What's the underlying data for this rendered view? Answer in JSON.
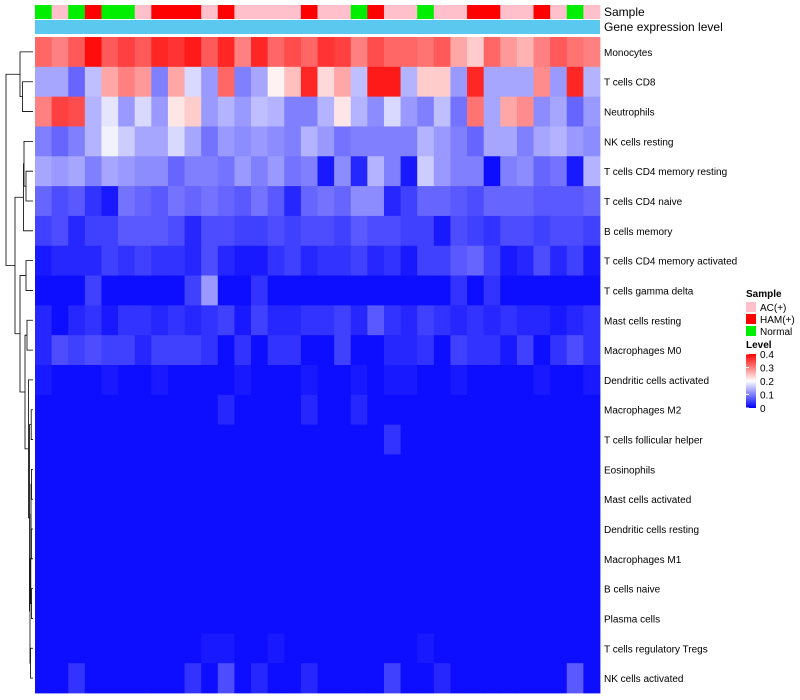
{
  "chart_data": {
    "type": "heatmap",
    "title": "",
    "annotation_tracks": [
      "Sample",
      "Gene expression level"
    ],
    "rows": [
      "Monocytes",
      "T cells CD8",
      "Neutrophils",
      "NK cells resting",
      "T cells CD4 memory resting",
      "T cells CD4 naive",
      "B cells memory",
      "T cells CD4 memory activated",
      "T cells gamma delta",
      "Mast cells resting",
      "Macrophages M0",
      "Dendritic cells activated",
      "Macrophages M2",
      "T cells follicular helper",
      "Eosinophils",
      "Mast cells activated",
      "Dendritic cells resting",
      "Macrophages M1",
      "B cells naive",
      "Plasma cells",
      "T cells regulatory  Tregs",
      "NK cells activated"
    ],
    "sample_groups": [
      "Normal",
      "AC(+)",
      "Normal",
      "HAM(+)",
      "Normal",
      "Normal",
      "AC(+)",
      "HAM(+)",
      "HAM(+)",
      "HAM(+)",
      "AC(+)",
      "HAM(+)",
      "AC(+)",
      "AC(+)",
      "AC(+)",
      "AC(+)",
      "HAM(+)",
      "AC(+)",
      "AC(+)",
      "Normal",
      "HAM(+)",
      "AC(+)",
      "AC(+)",
      "Normal",
      "AC(+)",
      "AC(+)",
      "HAM(+)",
      "HAM(+)",
      "AC(+)",
      "AC(+)",
      "HAM(+)",
      "AC(+)",
      "Normal",
      "AC(+)"
    ],
    "values": [
      [
        0.32,
        0.3,
        0.33,
        0.39,
        0.33,
        0.35,
        0.33,
        0.37,
        0.36,
        0.38,
        0.33,
        0.37,
        0.3,
        0.37,
        0.32,
        0.34,
        0.32,
        0.36,
        0.35,
        0.3,
        0.34,
        0.32,
        0.32,
        0.31,
        0.33,
        0.27,
        0.24,
        0.32,
        0.28,
        0.26,
        0.3,
        0.33,
        0.31,
        0.3
      ],
      [
        0.13,
        0.13,
        0.08,
        0.15,
        0.27,
        0.3,
        0.28,
        0.1,
        0.27,
        0.17,
        0.12,
        0.32,
        0.1,
        0.13,
        0.21,
        0.25,
        0.37,
        0.23,
        0.27,
        0.15,
        0.38,
        0.38,
        0.14,
        0.24,
        0.24,
        0.12,
        0.37,
        0.13,
        0.13,
        0.13,
        0.29,
        0.12,
        0.37,
        0.14
      ],
      [
        0.3,
        0.35,
        0.34,
        0.14,
        0.18,
        0.12,
        0.17,
        0.12,
        0.22,
        0.24,
        0.12,
        0.14,
        0.12,
        0.15,
        0.14,
        0.1,
        0.1,
        0.14,
        0.22,
        0.14,
        0.11,
        0.17,
        0.12,
        0.1,
        0.15,
        0.09,
        0.31,
        0.13,
        0.27,
        0.29,
        0.11,
        0.13,
        0.08,
        0.12
      ],
      [
        0.1,
        0.08,
        0.1,
        0.14,
        0.19,
        0.16,
        0.13,
        0.13,
        0.17,
        0.13,
        0.09,
        0.12,
        0.11,
        0.12,
        0.11,
        0.1,
        0.14,
        0.12,
        0.09,
        0.1,
        0.1,
        0.1,
        0.1,
        0.14,
        0.12,
        0.1,
        0.08,
        0.13,
        0.13,
        0.1,
        0.13,
        0.14,
        0.12,
        0.11
      ],
      [
        0.13,
        0.12,
        0.13,
        0.1,
        0.13,
        0.12,
        0.11,
        0.11,
        0.08,
        0.1,
        0.1,
        0.09,
        0.12,
        0.1,
        0.12,
        0.09,
        0.1,
        0.02,
        0.11,
        0.03,
        0.14,
        0.1,
        0.02,
        0.16,
        0.12,
        0.1,
        0.1,
        0.01,
        0.1,
        0.11,
        0.08,
        0.09,
        0.02,
        0.14
      ],
      [
        0.08,
        0.06,
        0.07,
        0.04,
        0.02,
        0.09,
        0.08,
        0.07,
        0.09,
        0.08,
        0.09,
        0.08,
        0.07,
        0.09,
        0.07,
        0.03,
        0.08,
        0.09,
        0.08,
        0.11,
        0.11,
        0.03,
        0.05,
        0.08,
        0.08,
        0.07,
        0.06,
        0.08,
        0.08,
        0.08,
        0.07,
        0.07,
        0.07,
        0.08
      ],
      [
        0.05,
        0.06,
        0.03,
        0.05,
        0.05,
        0.07,
        0.07,
        0.07,
        0.06,
        0.03,
        0.06,
        0.06,
        0.05,
        0.05,
        0.06,
        0.05,
        0.06,
        0.06,
        0.05,
        0.07,
        0.06,
        0.06,
        0.05,
        0.05,
        0.02,
        0.06,
        0.05,
        0.04,
        0.06,
        0.06,
        0.05,
        0.06,
        0.06,
        0.05
      ],
      [
        0.02,
        0.03,
        0.03,
        0.03,
        0.05,
        0.04,
        0.05,
        0.04,
        0.04,
        0.03,
        0.06,
        0.03,
        0.02,
        0.02,
        0.04,
        0.05,
        0.03,
        0.04,
        0.04,
        0.05,
        0.03,
        0.04,
        0.02,
        0.05,
        0.05,
        0.07,
        0.08,
        0.05,
        0.02,
        0.03,
        0.06,
        0.03,
        0.05,
        0.02
      ],
      [
        0.01,
        0.01,
        0.01,
        0.05,
        0.01,
        0.01,
        0.01,
        0.01,
        0.01,
        0.05,
        0.12,
        0.01,
        0.01,
        0.04,
        0.01,
        0.01,
        0.01,
        0.01,
        0.01,
        0.01,
        0.01,
        0.01,
        0.01,
        0.01,
        0.01,
        0.04,
        0.01,
        0.04,
        0.01,
        0.01,
        0.01,
        0.01,
        0.01,
        0.01
      ],
      [
        0.03,
        0.01,
        0.03,
        0.04,
        0.02,
        0.04,
        0.04,
        0.03,
        0.04,
        0.03,
        0.04,
        0.05,
        0.02,
        0.05,
        0.03,
        0.03,
        0.04,
        0.04,
        0.05,
        0.03,
        0.07,
        0.04,
        0.03,
        0.05,
        0.04,
        0.03,
        0.04,
        0.03,
        0.04,
        0.03,
        0.03,
        0.02,
        0.03,
        0.04
      ],
      [
        0.03,
        0.06,
        0.05,
        0.06,
        0.05,
        0.05,
        0.03,
        0.05,
        0.05,
        0.05,
        0.04,
        0.01,
        0.04,
        0.01,
        0.04,
        0.04,
        0.01,
        0.01,
        0.05,
        0.01,
        0.01,
        0.03,
        0.03,
        0.04,
        0.01,
        0.05,
        0.04,
        0.04,
        0.02,
        0.05,
        0.01,
        0.04,
        0.06,
        0.04
      ],
      [
        0.02,
        0.01,
        0.01,
        0.01,
        0.02,
        0.01,
        0.01,
        0.02,
        0.01,
        0.01,
        0.01,
        0.01,
        0.02,
        0.01,
        0.01,
        0.01,
        0.02,
        0.01,
        0.01,
        0.02,
        0.01,
        0.02,
        0.02,
        0.01,
        0.01,
        0.02,
        0.01,
        0.01,
        0.01,
        0.01,
        0.02,
        0.01,
        0.01,
        0.02
      ],
      [
        0.01,
        0.01,
        0.01,
        0.01,
        0.01,
        0.01,
        0.01,
        0.01,
        0.01,
        0.01,
        0.01,
        0.03,
        0.01,
        0.01,
        0.01,
        0.01,
        0.03,
        0.01,
        0.01,
        0.03,
        0.01,
        0.01,
        0.01,
        0.01,
        0.01,
        0.01,
        0.01,
        0.01,
        0.01,
        0.01,
        0.01,
        0.01,
        0.01,
        0.01
      ],
      [
        0.01,
        0.01,
        0.01,
        0.01,
        0.01,
        0.01,
        0.01,
        0.01,
        0.01,
        0.01,
        0.01,
        0.01,
        0.01,
        0.01,
        0.01,
        0.01,
        0.01,
        0.01,
        0.01,
        0.01,
        0.01,
        0.04,
        0.01,
        0.01,
        0.01,
        0.01,
        0.01,
        0.01,
        0.01,
        0.01,
        0.01,
        0.01,
        0.01,
        0.01
      ],
      [
        0.01,
        0.01,
        0.01,
        0.01,
        0.01,
        0.01,
        0.01,
        0.01,
        0.01,
        0.01,
        0.01,
        0.01,
        0.01,
        0.01,
        0.01,
        0.01,
        0.01,
        0.01,
        0.01,
        0.01,
        0.01,
        0.01,
        0.01,
        0.01,
        0.01,
        0.01,
        0.01,
        0.01,
        0.01,
        0.01,
        0.01,
        0.01,
        0.01,
        0.01
      ],
      [
        0.01,
        0.01,
        0.01,
        0.01,
        0.01,
        0.01,
        0.01,
        0.01,
        0.01,
        0.01,
        0.01,
        0.01,
        0.01,
        0.01,
        0.01,
        0.01,
        0.01,
        0.01,
        0.01,
        0.01,
        0.01,
        0.01,
        0.01,
        0.01,
        0.01,
        0.01,
        0.01,
        0.01,
        0.01,
        0.01,
        0.01,
        0.01,
        0.01,
        0.01
      ],
      [
        0.01,
        0.01,
        0.01,
        0.01,
        0.01,
        0.01,
        0.01,
        0.01,
        0.01,
        0.01,
        0.01,
        0.01,
        0.01,
        0.01,
        0.01,
        0.01,
        0.01,
        0.01,
        0.01,
        0.01,
        0.01,
        0.01,
        0.01,
        0.01,
        0.01,
        0.01,
        0.01,
        0.01,
        0.01,
        0.01,
        0.01,
        0.01,
        0.01,
        0.01
      ],
      [
        0.01,
        0.01,
        0.01,
        0.01,
        0.01,
        0.01,
        0.01,
        0.01,
        0.01,
        0.01,
        0.01,
        0.01,
        0.01,
        0.01,
        0.01,
        0.01,
        0.01,
        0.01,
        0.01,
        0.01,
        0.01,
        0.01,
        0.01,
        0.01,
        0.01,
        0.01,
        0.01,
        0.01,
        0.01,
        0.01,
        0.01,
        0.01,
        0.01,
        0.01
      ],
      [
        0.01,
        0.01,
        0.01,
        0.01,
        0.01,
        0.01,
        0.01,
        0.01,
        0.01,
        0.01,
        0.01,
        0.01,
        0.01,
        0.01,
        0.01,
        0.01,
        0.01,
        0.01,
        0.01,
        0.01,
        0.01,
        0.01,
        0.01,
        0.01,
        0.01,
        0.01,
        0.01,
        0.01,
        0.01,
        0.01,
        0.01,
        0.01,
        0.01,
        0.01
      ],
      [
        0.01,
        0.01,
        0.01,
        0.01,
        0.01,
        0.01,
        0.01,
        0.01,
        0.01,
        0.01,
        0.01,
        0.01,
        0.01,
        0.01,
        0.01,
        0.01,
        0.01,
        0.01,
        0.01,
        0.01,
        0.01,
        0.01,
        0.01,
        0.01,
        0.01,
        0.01,
        0.01,
        0.01,
        0.01,
        0.01,
        0.01,
        0.01,
        0.01,
        0.01
      ],
      [
        0.01,
        0.01,
        0.01,
        0.01,
        0.01,
        0.01,
        0.01,
        0.01,
        0.01,
        0.01,
        0.02,
        0.02,
        0.01,
        0.01,
        0.02,
        0.01,
        0.01,
        0.01,
        0.01,
        0.01,
        0.01,
        0.01,
        0.01,
        0.02,
        0.01,
        0.01,
        0.01,
        0.01,
        0.01,
        0.01,
        0.01,
        0.01,
        0.01,
        0.01
      ],
      [
        0.01,
        0.01,
        0.04,
        0.01,
        0.01,
        0.01,
        0.01,
        0.01,
        0.01,
        0.04,
        0.01,
        0.06,
        0.01,
        0.03,
        0.01,
        0.01,
        0.03,
        0.01,
        0.01,
        0.01,
        0.01,
        0.05,
        0.01,
        0.01,
        0.03,
        0.01,
        0.01,
        0.01,
        0.01,
        0.01,
        0.01,
        0.01,
        0.07,
        0.01
      ]
    ],
    "legend": {
      "sample_title": "Sample",
      "sample_entries": [
        {
          "label": "AC(+)",
          "color": "#FFC0CB"
        },
        {
          "label": "HAM(+)",
          "color": "#FF0000"
        },
        {
          "label": "Normal",
          "color": "#00EE00"
        }
      ],
      "level_title": "Level",
      "level_ticks": [
        "0.4",
        "0.3",
        "0.2",
        "0.1",
        "0"
      ],
      "level_range": [
        0,
        0.4
      ]
    },
    "expression_track_color": "#5BC8F0",
    "color_scale": {
      "low": "#0000FF",
      "mid": "#FFFFFF",
      "high": "#FF0000",
      "mid_value": 0.2
    }
  }
}
